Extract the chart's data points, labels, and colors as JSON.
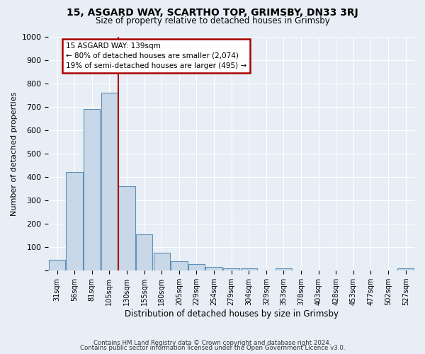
{
  "title": "15, ASGARD WAY, SCARTHO TOP, GRIMSBY, DN33 3RJ",
  "subtitle": "Size of property relative to detached houses in Grimsby",
  "xlabel": "Distribution of detached houses by size in Grimsby",
  "ylabel": "Number of detached properties",
  "bar_color": "#c8d8e8",
  "bar_edge_color": "#6090b8",
  "background_color": "#e8eef5",
  "fig_background_color": "#e8eef5",
  "grid_color": "#ffffff",
  "categories": [
    "31sqm",
    "56sqm",
    "81sqm",
    "105sqm",
    "130sqm",
    "155sqm",
    "180sqm",
    "205sqm",
    "229sqm",
    "254sqm",
    "279sqm",
    "304sqm",
    "329sqm",
    "353sqm",
    "378sqm",
    "403sqm",
    "428sqm",
    "453sqm",
    "477sqm",
    "502sqm",
    "527sqm"
  ],
  "values": [
    47,
    420,
    690,
    760,
    360,
    155,
    75,
    40,
    27,
    17,
    10,
    10,
    0,
    10,
    0,
    0,
    0,
    0,
    0,
    0,
    10
  ],
  "ylim": [
    0,
    1000
  ],
  "yticks": [
    0,
    100,
    200,
    300,
    400,
    500,
    600,
    700,
    800,
    900,
    1000
  ],
  "property_label": "15 ASGARD WAY: 139sqm",
  "pct_smaller": "80% of detached houses are smaller (2,074)",
  "pct_larger": "19% of semi-detached houses are larger (495)",
  "vline_index": 4,
  "annotation_box_color": "#ffffff",
  "annotation_box_edge": "#aa0000",
  "vline_color": "#aa0000",
  "footer_line1": "Contains HM Land Registry data © Crown copyright and database right 2024.",
  "footer_line2": "Contains public sector information licensed under the Open Government Licence v3.0."
}
